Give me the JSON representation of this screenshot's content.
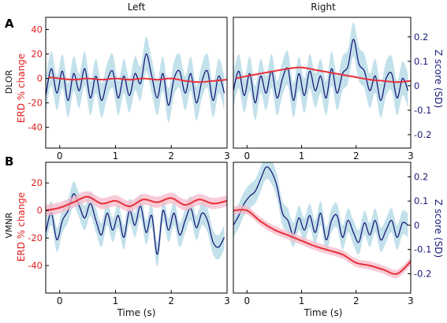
{
  "figure": {
    "columns": [
      "Left",
      "Right"
    ],
    "rows": [
      {
        "letter": "A",
        "label": "DLOR"
      },
      {
        "letter": "B",
        "label": "VMNR"
      }
    ],
    "left_axis_label": "ERD % change",
    "right_axis_label": "Z score (SD)",
    "x_axis_label": "Time (s)",
    "colors": {
      "erd": "#e8303a",
      "erd_band": "#f6b9c8",
      "z": "#1b1b78",
      "z_band": "#b9dce8",
      "frame": "#000000"
    }
  },
  "chart_data": [
    {
      "type": "line",
      "panel": "A-Left",
      "xlim": [
        -0.25,
        3
      ],
      "x_ticks": [
        0,
        1,
        2,
        3
      ],
      "y_left_ticks": [
        -40,
        -20,
        0,
        20,
        40
      ],
      "y_left_lim": [
        -57,
        50
      ],
      "y_right_ticks": [
        0.2,
        0.1,
        0,
        -0.1,
        -0.2
      ],
      "y_right_lim": [
        -0.255,
        0.28
      ],
      "series": [
        {
          "axis": "left",
          "color": "#e8303a",
          "x": [
            -0.2,
            0,
            0.25,
            0.5,
            0.75,
            1,
            1.25,
            1.5,
            1.75,
            2,
            2.25,
            2.5,
            2.75,
            3
          ],
          "y": [
            1,
            0,
            -1,
            0,
            -1,
            0,
            -1,
            0,
            -1,
            0,
            -2,
            -3,
            -2,
            -1
          ]
        },
        {
          "axis": "right",
          "color": "#1b1b78",
          "band": 0.07,
          "x": [
            -0.25,
            -0.15,
            -0.05,
            0.05,
            0.15,
            0.25,
            0.35,
            0.45,
            0.55,
            0.65,
            0.75,
            0.85,
            0.95,
            1.05,
            1.15,
            1.25,
            1.35,
            1.45,
            1.55,
            1.65,
            1.75,
            1.85,
            1.95,
            2.05,
            2.15,
            2.25,
            2.35,
            2.45,
            2.55,
            2.65,
            2.75,
            2.85,
            2.95
          ],
          "y": [
            -0.04,
            0.07,
            -0.03,
            0.06,
            -0.06,
            0.05,
            -0.02,
            0.07,
            -0.05,
            0.04,
            -0.06,
            0.02,
            0.06,
            -0.05,
            0.04,
            -0.04,
            0.05,
            0.01,
            0.13,
            0.04,
            -0.05,
            0.05,
            -0.08,
            0.03,
            0.06,
            -0.03,
            0.05,
            -0.07,
            0.02,
            0.06,
            -0.06,
            0.04,
            -0.03
          ]
        }
      ]
    },
    {
      "type": "line",
      "panel": "A-Right",
      "xlim": [
        -0.25,
        3
      ],
      "x_ticks": [
        0,
        1,
        2,
        3
      ],
      "y_left_ticks": [
        -40,
        -20,
        0,
        20,
        40
      ],
      "y_left_lim": [
        -57,
        50
      ],
      "y_right_ticks": [
        0.2,
        0.1,
        0,
        -0.1,
        -0.2
      ],
      "y_right_lim": [
        -0.255,
        0.28
      ],
      "series": [
        {
          "axis": "left",
          "color": "#e8303a",
          "x": [
            -0.2,
            0,
            0.25,
            0.5,
            0.75,
            1,
            1.25,
            1.5,
            1.75,
            2,
            2.25,
            2.5,
            2.75,
            3
          ],
          "y": [
            0,
            2,
            4,
            6,
            8,
            9,
            7,
            5,
            3,
            1,
            -1,
            -2,
            -3,
            -2
          ]
        },
        {
          "axis": "right",
          "color": "#1b1b78",
          "band": 0.07,
          "x": [
            -0.25,
            -0.15,
            -0.05,
            0.05,
            0.15,
            0.25,
            0.35,
            0.45,
            0.55,
            0.65,
            0.75,
            0.85,
            0.95,
            1.05,
            1.15,
            1.25,
            1.35,
            1.45,
            1.55,
            1.65,
            1.75,
            1.85,
            1.95,
            2.05,
            2.15,
            2.25,
            2.35,
            2.45,
            2.55,
            2.65,
            2.75,
            2.85,
            2.95
          ],
          "y": [
            -0.02,
            0.06,
            -0.04,
            0.05,
            -0.07,
            0.04,
            -0.03,
            0.06,
            -0.05,
            0.03,
            0.07,
            -0.06,
            0.05,
            -0.04,
            0.06,
            -0.02,
            0.04,
            -0.05,
            0.07,
            -0.03,
            0.05,
            0.08,
            0.19,
            0.09,
            0.06,
            -0.02,
            0.04,
            -0.06,
            0.03,
            0.05,
            -0.05,
            0.03,
            -0.02
          ]
        }
      ]
    },
    {
      "type": "line",
      "panel": "B-Left",
      "xlim": [
        -0.25,
        3
      ],
      "x_ticks": [
        0,
        1,
        2,
        3
      ],
      "y_left_ticks": [
        -40,
        -20,
        0,
        20
      ],
      "y_left_lim": [
        -60,
        35
      ],
      "y_right_ticks": [
        0.2,
        0.1,
        0,
        -0.1,
        -0.2
      ],
      "y_right_lim": [
        -0.28,
        0.26
      ],
      "series": [
        {
          "axis": "left",
          "color": "#e8303a",
          "band": 4,
          "x": [
            -0.25,
            0,
            0.25,
            0.5,
            0.75,
            1,
            1.25,
            1.5,
            1.75,
            2,
            2.25,
            2.5,
            2.75,
            3
          ],
          "y": [
            0,
            2,
            6,
            10,
            5,
            7,
            3,
            8,
            6,
            9,
            4,
            8,
            5,
            7
          ]
        },
        {
          "axis": "right",
          "color": "#1b1b78",
          "band": 0.05,
          "x": [
            -0.25,
            -0.15,
            -0.05,
            0.05,
            0.15,
            0.25,
            0.35,
            0.45,
            0.55,
            0.65,
            0.75,
            0.85,
            0.95,
            1.05,
            1.15,
            1.25,
            1.35,
            1.45,
            1.55,
            1.65,
            1.75,
            1.85,
            1.95,
            2.05,
            2.15,
            2.25,
            2.35,
            2.45,
            2.55,
            2.65,
            2.75,
            2.85,
            2.95
          ],
          "y": [
            -0.03,
            0.05,
            -0.06,
            0.02,
            0.06,
            0.13,
            0.08,
            0.03,
            0.09,
            0.02,
            -0.04,
            0.05,
            -0.02,
            0.04,
            -0.05,
            0.06,
            0,
            0.08,
            -0.03,
            0.04,
            -0.12,
            0.06,
            -0.02,
            0.05,
            -0.04,
            0.02,
            0.07,
            -0.01,
            0.05,
            0.02,
            -0.07,
            -0.09,
            -0.05
          ]
        }
      ]
    },
    {
      "type": "line",
      "panel": "B-Right",
      "xlim": [
        -0.25,
        3
      ],
      "x_ticks": [
        0,
        1,
        2,
        3
      ],
      "y_left_ticks": [
        -40,
        -20,
        0,
        20
      ],
      "y_left_lim": [
        -60,
        35
      ],
      "y_right_ticks": [
        0.2,
        0.1,
        0,
        -0.1,
        -0.2
      ],
      "y_right_lim": [
        -0.28,
        0.26
      ],
      "series": [
        {
          "axis": "left",
          "color": "#e8303a",
          "band": 3,
          "x": [
            -0.25,
            0,
            0.25,
            0.5,
            0.75,
            1,
            1.25,
            1.5,
            1.75,
            2,
            2.25,
            2.5,
            2.75,
            3
          ],
          "y": [
            0,
            0,
            -8,
            -14,
            -18,
            -22,
            -26,
            -29,
            -32,
            -38,
            -40,
            -43,
            -46,
            -37
          ]
        },
        {
          "axis": "right",
          "color": "#1b1b78",
          "band": 0.05,
          "x": [
            -0.25,
            -0.15,
            -0.05,
            0.05,
            0.15,
            0.25,
            0.35,
            0.45,
            0.55,
            0.65,
            0.75,
            0.85,
            0.95,
            1.05,
            1.15,
            1.25,
            1.35,
            1.45,
            1.55,
            1.65,
            1.75,
            1.85,
            1.95,
            2.05,
            2.15,
            2.25,
            2.35,
            2.45,
            2.55,
            2.65,
            2.75,
            2.85,
            2.95
          ],
          "y": [
            0,
            0.04,
            0.09,
            0.12,
            0.14,
            0.19,
            0.24,
            0.22,
            0.16,
            0.05,
            0.02,
            -0.04,
            0.03,
            -0.02,
            0.04,
            -0.03,
            0.05,
            -0.06,
            0.02,
            0.04,
            -0.05,
            0.02,
            -0.03,
            -0.07,
            0.01,
            -0.04,
            0.02,
            -0.06,
            -0.02,
            0.02,
            -0.05,
            0.01,
            0
          ]
        }
      ]
    }
  ]
}
